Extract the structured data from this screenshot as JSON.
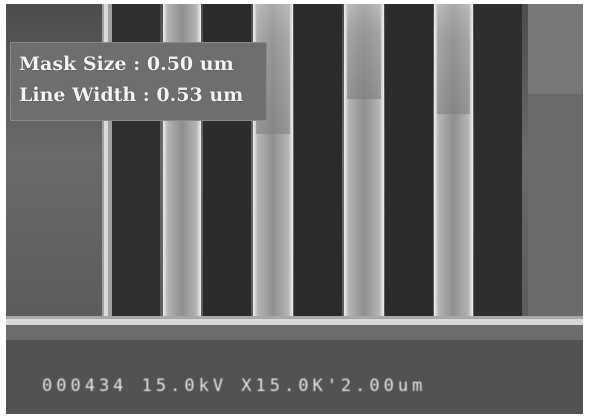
{
  "image": {
    "type": "sem-micrograph",
    "description_labels": {
      "mask_size": "Mask Size : 0.50 um",
      "line_width": "Line Width : 0.53 um"
    },
    "data_bar": "000434 15.0kV X15.0K'2.00um",
    "colors": {
      "background": "#5c5c5c",
      "line_edge": "#e8e8e8",
      "trench": "#2e2e2e",
      "substrate": "#525252"
    }
  }
}
